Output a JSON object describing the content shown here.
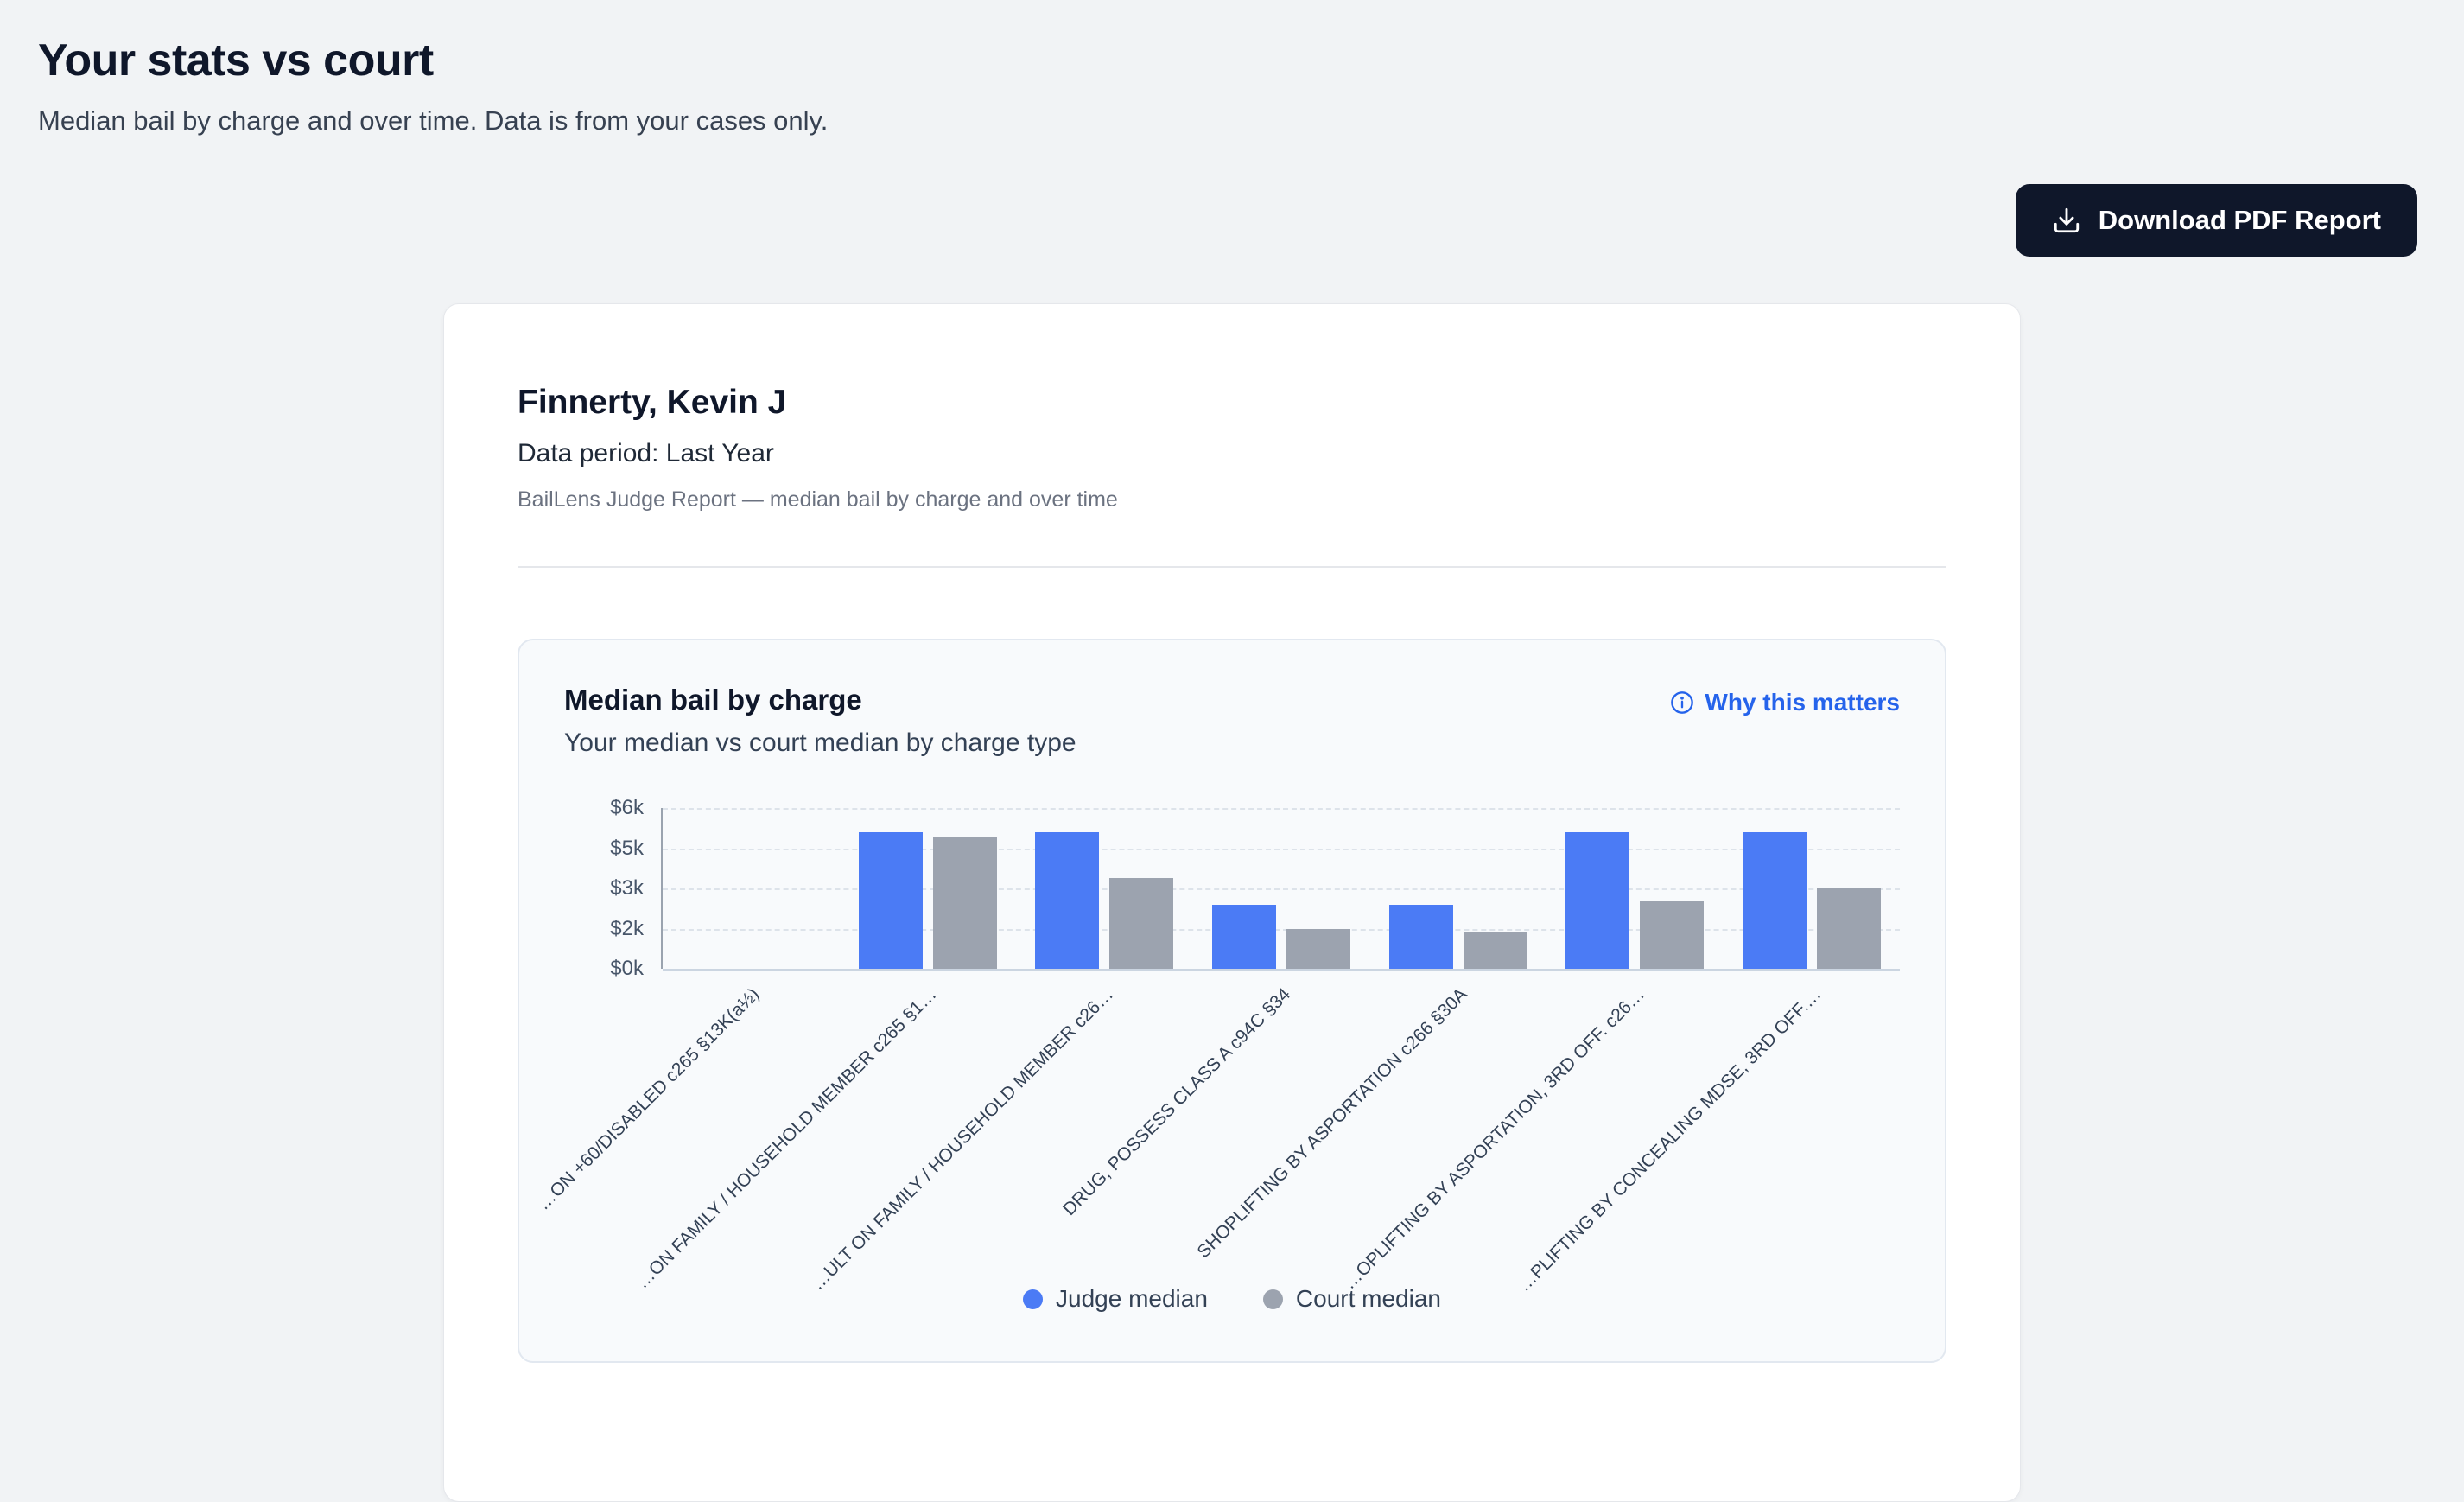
{
  "page": {
    "title": "Your stats vs court",
    "subtitle": "Median bail by charge and over time. Data is from your cases only.",
    "download_button_label": "Download PDF Report"
  },
  "report": {
    "judge_name": "Finnerty, Kevin J",
    "data_period": "Data period: Last Year",
    "description": "BailLens Judge Report — median bail by charge and over time"
  },
  "chart_card": {
    "why_link": "Why this matters"
  },
  "colors": {
    "judge_bar": "#4b7bf5",
    "court_bar": "#9ca3af",
    "link_blue": "#2563eb",
    "button_bg": "#0f172a"
  },
  "chart_data": {
    "type": "bar",
    "title": "Median bail by charge",
    "subtitle": "Your median vs court median by charge type",
    "categories": [
      "…ON +60/DISABLED c265 §13K(a½)",
      "…ON FAMILY / HOUSEHOLD MEMBER c265 §1…",
      "…ULT ON FAMILY / HOUSEHOLD MEMBER c26…",
      "DRUG, POSSESS CLASS A c94C §34",
      "SHOPLIFTING BY ASPORTATION c266 §30A",
      "…OPLIFTING BY ASPORTATION, 3RD OFF. c26…",
      "…PLIFTING BY CONCEALING MDSE, 3RD OFF.…"
    ],
    "series": [
      {
        "name": "Judge median",
        "color": "#4b7bf5",
        "values": [
          0,
          5400,
          5400,
          2600,
          2600,
          5400,
          5400
        ]
      },
      {
        "name": "Court median",
        "color": "#9ca3af",
        "values": [
          0,
          5300,
          3500,
          2000,
          1800,
          2700,
          3000
        ]
      }
    ],
    "y_ticks": [
      {
        "label": "$0k",
        "value": 0
      },
      {
        "label": "$2k",
        "value": 2000
      },
      {
        "label": "$3k",
        "value": 3000
      },
      {
        "label": "$5k",
        "value": 5000
      },
      {
        "label": "$6k",
        "value": 6000
      }
    ],
    "ylim": [
      0,
      6000
    ],
    "grid": "horizontal-dashed",
    "legend_position": "bottom"
  }
}
